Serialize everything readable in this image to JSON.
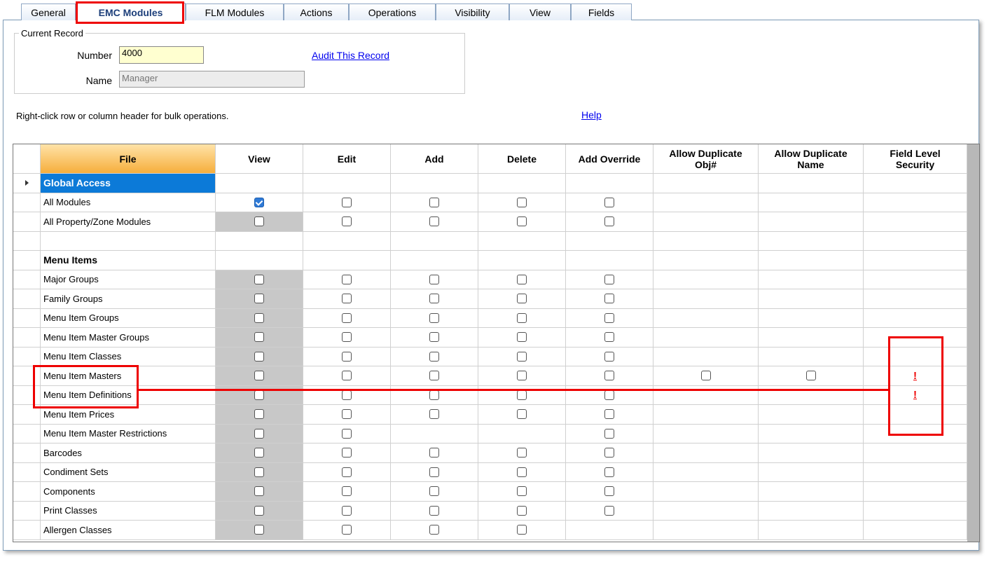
{
  "tabs": [
    "General",
    "EMC Modules",
    "FLM Modules",
    "Actions",
    "Operations",
    "Visibility",
    "View",
    "Fields"
  ],
  "selected_tab": 1,
  "current_record": {
    "legend": "Current Record",
    "number_label": "Number",
    "number": "4000",
    "name_label": "Name",
    "name": "Manager",
    "audit_link": "Audit This Record"
  },
  "hint": "Right-click row or column header for bulk operations.",
  "help_link": "Help",
  "grid": {
    "columns": [
      "File",
      "View",
      "Edit",
      "Add",
      "Delete",
      "Add Override",
      "Allow Duplicate Obj#",
      "Allow Duplicate Name",
      "Field Level Security"
    ],
    "rows": [
      {
        "label": "Global Access",
        "section": true,
        "selected": true,
        "cells": [
          null,
          null,
          null,
          null,
          null,
          null,
          null,
          null
        ]
      },
      {
        "label": "All Modules",
        "cells": [
          true,
          false,
          false,
          false,
          false,
          null,
          null,
          null
        ]
      },
      {
        "label": "All Property/Zone Modules",
        "view_disabled": true,
        "cells": [
          false,
          false,
          false,
          false,
          false,
          null,
          null,
          null
        ]
      },
      {
        "label": null,
        "cells": [
          null,
          null,
          null,
          null,
          null,
          null,
          null,
          null
        ]
      },
      {
        "label": "Menu Items",
        "section": true,
        "cells": [
          null,
          null,
          null,
          null,
          null,
          null,
          null,
          null
        ]
      },
      {
        "label": "Major Groups",
        "view_disabled": true,
        "cells": [
          false,
          false,
          false,
          false,
          false,
          null,
          null,
          null
        ]
      },
      {
        "label": "Family Groups",
        "view_disabled": true,
        "cells": [
          false,
          false,
          false,
          false,
          false,
          null,
          null,
          null
        ]
      },
      {
        "label": "Menu Item Groups",
        "view_disabled": true,
        "cells": [
          false,
          false,
          false,
          false,
          false,
          null,
          null,
          null
        ]
      },
      {
        "label": "Menu Item Master Groups",
        "view_disabled": true,
        "cells": [
          false,
          false,
          false,
          false,
          false,
          null,
          null,
          null
        ]
      },
      {
        "label": "Menu Item Classes",
        "view_disabled": true,
        "cells": [
          false,
          false,
          false,
          false,
          false,
          null,
          null,
          null
        ]
      },
      {
        "label": "Menu Item Masters",
        "view_disabled": true,
        "cells": [
          false,
          false,
          false,
          false,
          false,
          false,
          false,
          "!"
        ]
      },
      {
        "label": "Menu Item Definitions",
        "view_disabled": true,
        "cells": [
          false,
          false,
          false,
          false,
          false,
          null,
          null,
          "!"
        ]
      },
      {
        "label": "Menu Item Prices",
        "view_disabled": true,
        "cells": [
          false,
          false,
          false,
          false,
          false,
          null,
          null,
          null
        ]
      },
      {
        "label": "Menu Item Master Restrictions",
        "view_disabled": true,
        "cells": [
          false,
          false,
          null,
          null,
          false,
          null,
          null,
          null
        ]
      },
      {
        "label": "Barcodes",
        "view_disabled": true,
        "cells": [
          false,
          false,
          false,
          false,
          false,
          null,
          null,
          null
        ]
      },
      {
        "label": "Condiment Sets",
        "view_disabled": true,
        "cells": [
          false,
          false,
          false,
          false,
          false,
          null,
          null,
          null
        ]
      },
      {
        "label": "Components",
        "view_disabled": true,
        "cells": [
          false,
          false,
          false,
          false,
          false,
          null,
          null,
          null
        ]
      },
      {
        "label": "Print Classes",
        "view_disabled": true,
        "cells": [
          false,
          false,
          false,
          false,
          false,
          null,
          null,
          null
        ]
      },
      {
        "label": "Allergen Classes",
        "view_disabled": true,
        "cells": [
          false,
          false,
          false,
          false,
          null,
          null,
          null,
          null
        ]
      }
    ]
  }
}
